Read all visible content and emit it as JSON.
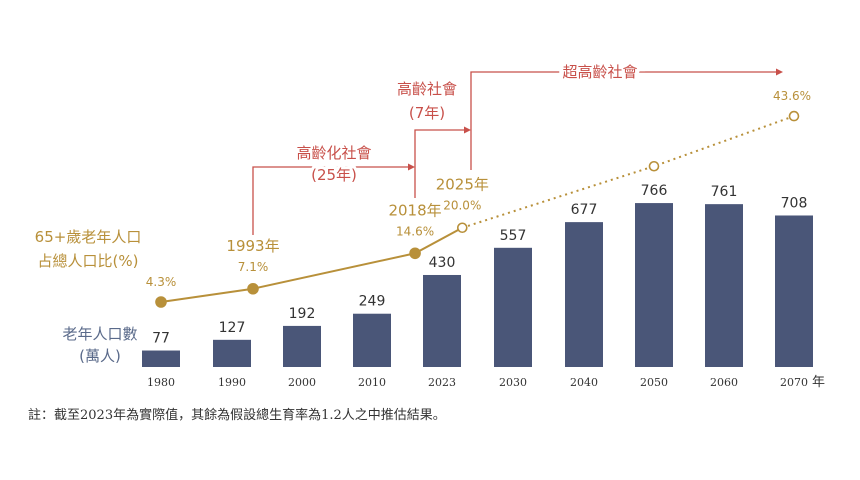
{
  "chart_data": {
    "type": "bar+line",
    "categories": [
      "1980",
      "1990",
      "2000",
      "2010",
      "2023",
      "2030",
      "2040",
      "2050",
      "2060",
      "2070"
    ],
    "x_unit": "年",
    "bar_series": {
      "name": "老年人口數 (萬人)",
      "name_lines": [
        "老年人口數",
        "(萬人)"
      ],
      "values": [
        77,
        127,
        192,
        249,
        430,
        557,
        677,
        766,
        761,
        708
      ],
      "color": "#4a5678"
    },
    "line_series": {
      "name": "65+歲老年人口占總人口比(%)",
      "name_lines": [
        "65+歲老年人口",
        "占總人口比(%)"
      ],
      "color": "#b8903a",
      "points": [
        {
          "year": 1980,
          "value": 4.3,
          "label": "4.3%",
          "year_label": ""
        },
        {
          "year": 1993,
          "value": 7.1,
          "label": "7.1%",
          "year_label": "1993年"
        },
        {
          "year": 2018,
          "value": 14.6,
          "label": "14.6%",
          "year_label": "2018年"
        },
        {
          "year": 2025,
          "value": 20.0,
          "label": "20.0%",
          "year_label": "2025年"
        },
        {
          "year": 2050,
          "value": 33,
          "label": "",
          "year_label": ""
        },
        {
          "year": 2070,
          "value": 43.6,
          "label": "43.6%",
          "year_label": ""
        }
      ],
      "projection_from_year": 2025
    },
    "annotations": [
      {
        "lines": [
          "高齡化社會",
          "(25年)"
        ],
        "from": 1993,
        "to": 2018
      },
      {
        "lines": [
          "高齡社會",
          "(7年)"
        ],
        "from": 2018,
        "to": 2025
      },
      {
        "lines": [
          "超高齡社會"
        ],
        "from": 2025,
        "to": 2070
      }
    ],
    "annotation_color": "#c8504a"
  },
  "note": "註：截至2023年為實際值，其餘為假設總生育率為1.2人之中推估結果。"
}
